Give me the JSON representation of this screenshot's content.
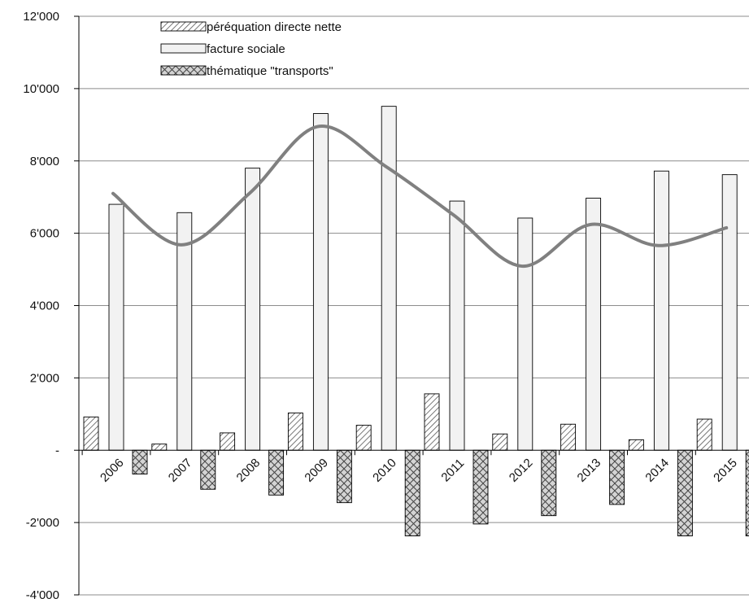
{
  "chart_data": {
    "type": "bar",
    "categories": [
      "2006",
      "2007",
      "2008",
      "2009",
      "2010",
      "2011",
      "2012",
      "2013",
      "2014",
      "2015"
    ],
    "series": [
      {
        "name": "péréquation directe nette",
        "values": [
          920,
          170,
          480,
          1030,
          690,
          1560,
          450,
          720,
          290,
          860
        ],
        "pattern": "diagonal-hatch",
        "color": "#d9d9d9"
      },
      {
        "name": "facture sociale",
        "values": [
          6800,
          6570,
          7800,
          9310,
          9510,
          6890,
          6420,
          6970,
          7720,
          7620
        ],
        "pattern": "solid",
        "color": "#f2f2f2"
      },
      {
        "name": "thématique \"transports\"",
        "values": [
          -660,
          -1080,
          -1240,
          -1450,
          -2370,
          -2040,
          -1810,
          -1500,
          -2370,
          -2370
        ],
        "pattern": "cross-hatch",
        "color": "#d0d0d0"
      }
    ],
    "trend_line": {
      "color": "#808080",
      "values": [
        7100,
        5680,
        7100,
        8950,
        7850,
        6500,
        5090,
        6240,
        5660,
        6150
      ]
    },
    "yticks": [
      {
        "value": 12000,
        "label": "12'000"
      },
      {
        "value": 10000,
        "label": "10'000"
      },
      {
        "value": 8000,
        "label": "8'000"
      },
      {
        "value": 6000,
        "label": "6'000"
      },
      {
        "value": 4000,
        "label": "4'000"
      },
      {
        "value": 2000,
        "label": "2'000"
      },
      {
        "value": 0,
        "label": "-"
      },
      {
        "value": -2000,
        "label": "-2'000"
      },
      {
        "value": -4000,
        "label": "-4'000"
      }
    ],
    "ylim": [
      -4000,
      12000
    ],
    "title": "",
    "xlabel": "",
    "ylabel": "",
    "grid": true,
    "legend_position": "top-left"
  }
}
